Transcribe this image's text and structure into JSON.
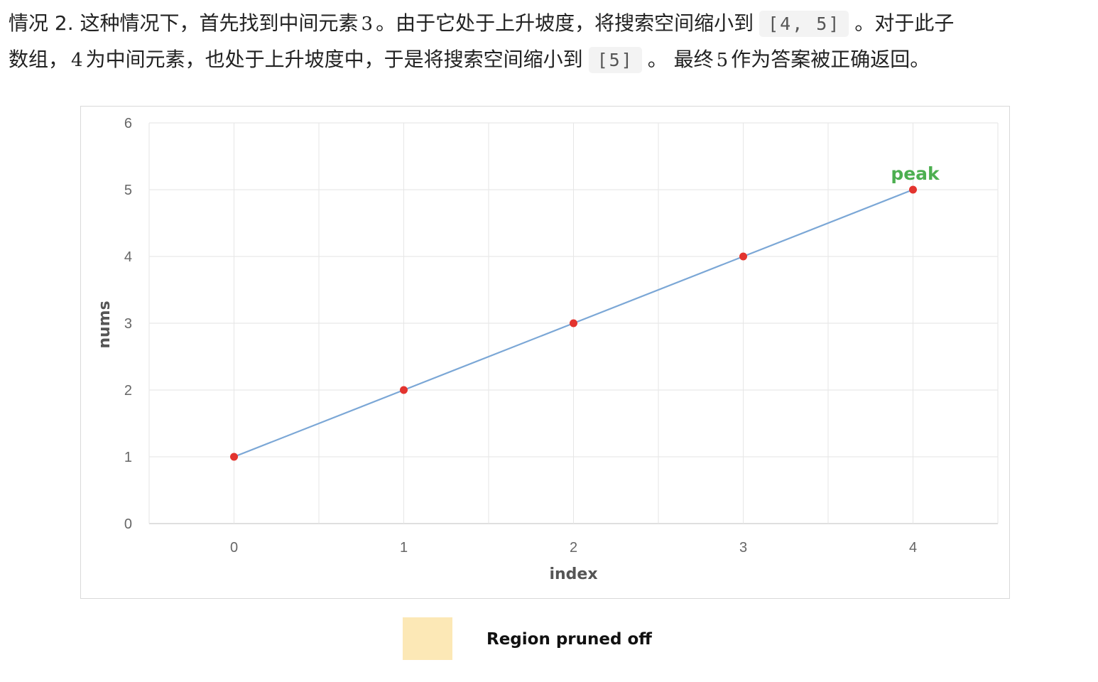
{
  "text": {
    "line1_a": "情况 2. 这种情况下，首先找到中间元素",
    "line1_num": "3",
    "line1_b": "。由于它处于上升坡度，将搜索空间缩小到",
    "line1_code": "[4, 5]",
    "line1_c": "。对于此子",
    "line2_a": "数组，",
    "line2_num": "4",
    "line2_b": "为中间元素，也处于上升坡度中，于是将搜索空间缩小到",
    "line2_code": "[5]",
    "line2_c": "。 最终",
    "line2_num2": "5",
    "line2_d": "作为答案被正确返回。"
  },
  "legend": {
    "label": "Region pruned off",
    "swatch_color": "#fce8b6"
  },
  "chart_data": {
    "type": "line",
    "x": [
      0,
      1,
      2,
      3,
      4
    ],
    "series": [
      {
        "values": [
          1,
          2,
          3,
          4,
          5
        ],
        "line_color": "#7ba7d6",
        "marker_color": "#e3342f"
      }
    ],
    "xlabel": "index",
    "ylabel": "nums",
    "xlim": [
      -0.5,
      4.5
    ],
    "ylim": [
      0,
      6
    ],
    "x_ticks": [
      "0",
      "1",
      "2",
      "3",
      "4"
    ],
    "y_ticks": [
      "0",
      "1",
      "2",
      "3",
      "4",
      "5",
      "6"
    ],
    "grid": true,
    "annotations": [
      {
        "text": "peak",
        "x": 4,
        "y": 5,
        "color": "#4caf50"
      }
    ]
  }
}
